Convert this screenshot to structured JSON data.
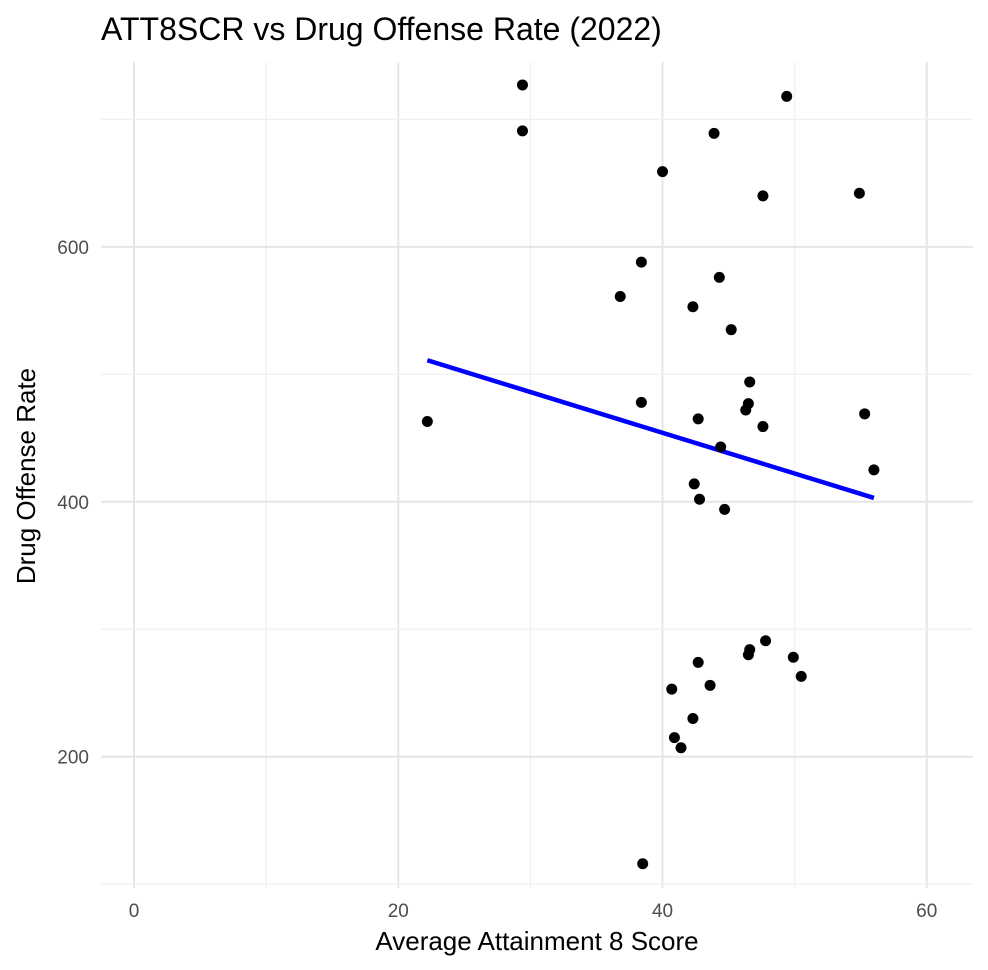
{
  "chart_data": {
    "type": "scatter",
    "title": "ATT8SCR vs Drug Offense Rate (2022)",
    "xlabel": "Average Attainment 8 Score",
    "ylabel": "Drug Offense Rate",
    "xlim": [
      -2.5,
      63.5
    ],
    "ylim": [
      97,
      745
    ],
    "x_ticks": [
      0,
      20,
      40,
      60
    ],
    "y_ticks": [
      200,
      400,
      600
    ],
    "grid": true,
    "legend": "none",
    "point_color": "#000000",
    "line_color": "#0000ff",
    "points": [
      {
        "x": 29.4,
        "y": 727
      },
      {
        "x": 29.4,
        "y": 691
      },
      {
        "x": 49.4,
        "y": 718
      },
      {
        "x": 43.9,
        "y": 689
      },
      {
        "x": 40.0,
        "y": 659
      },
      {
        "x": 47.6,
        "y": 640
      },
      {
        "x": 54.9,
        "y": 642
      },
      {
        "x": 38.4,
        "y": 588
      },
      {
        "x": 36.8,
        "y": 561
      },
      {
        "x": 44.3,
        "y": 576
      },
      {
        "x": 42.3,
        "y": 553
      },
      {
        "x": 45.2,
        "y": 535
      },
      {
        "x": 46.6,
        "y": 494
      },
      {
        "x": 38.4,
        "y": 478
      },
      {
        "x": 46.5,
        "y": 477
      },
      {
        "x": 46.3,
        "y": 472
      },
      {
        "x": 55.3,
        "y": 469
      },
      {
        "x": 42.7,
        "y": 465
      },
      {
        "x": 22.2,
        "y": 463
      },
      {
        "x": 47.6,
        "y": 459
      },
      {
        "x": 44.4,
        "y": 443
      },
      {
        "x": 56.0,
        "y": 425
      },
      {
        "x": 42.4,
        "y": 414
      },
      {
        "x": 42.8,
        "y": 402
      },
      {
        "x": 44.7,
        "y": 394
      },
      {
        "x": 47.8,
        "y": 291
      },
      {
        "x": 46.6,
        "y": 284
      },
      {
        "x": 46.5,
        "y": 280
      },
      {
        "x": 49.9,
        "y": 278
      },
      {
        "x": 42.7,
        "y": 274
      },
      {
        "x": 50.5,
        "y": 263
      },
      {
        "x": 43.6,
        "y": 256
      },
      {
        "x": 40.7,
        "y": 253
      },
      {
        "x": 42.3,
        "y": 230
      },
      {
        "x": 40.9,
        "y": 215
      },
      {
        "x": 41.4,
        "y": 207
      },
      {
        "x": 38.5,
        "y": 116
      }
    ],
    "regression_line": {
      "x": [
        22.2,
        56.0
      ],
      "y": [
        511,
        403
      ]
    }
  }
}
